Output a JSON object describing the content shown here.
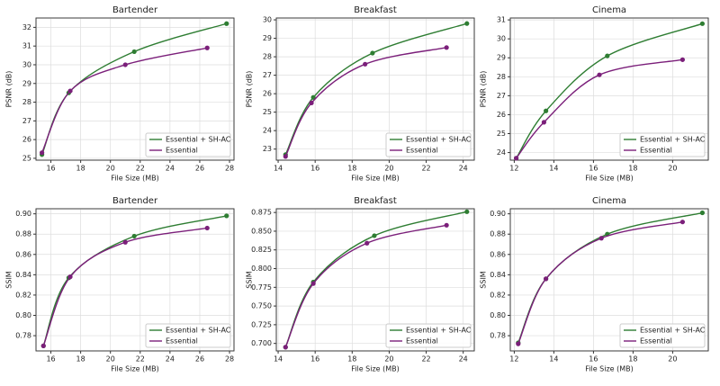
{
  "chart_data": [
    {
      "type": "line",
      "title": "Bartender",
      "x_label": "File Size (MB)",
      "y_label": "PSNR (dB)",
      "xlim": [
        15,
        28.3
      ],
      "xticks": [
        16,
        18,
        20,
        22,
        24,
        26,
        28
      ],
      "ylim": [
        24.9,
        32.5
      ],
      "yticks": [
        25,
        26,
        27,
        28,
        29,
        30,
        31,
        32
      ],
      "grid": true,
      "legend": "lower right",
      "series": [
        {
          "name": "Essential + SH-AC",
          "color": "#2e7d32",
          "x": [
            15.4,
            17.2,
            21.6,
            27.8
          ],
          "values": [
            25.2,
            28.5,
            30.7,
            32.2
          ]
        },
        {
          "name": "Essential",
          "color": "#7b1f7a",
          "x": [
            15.4,
            17.3,
            21.0,
            26.5
          ],
          "values": [
            25.3,
            28.6,
            30.0,
            30.9
          ]
        }
      ]
    },
    {
      "type": "line",
      "title": "Breakfast",
      "x_label": "File Size (MB)",
      "y_label": "PSNR (dB)",
      "xlim": [
        13.9,
        24.6
      ],
      "xticks": [
        14,
        16,
        18,
        20,
        22,
        24
      ],
      "ylim": [
        22.4,
        30.1
      ],
      "yticks": [
        23,
        24,
        25,
        26,
        27,
        28,
        29,
        30
      ],
      "grid": true,
      "legend": "lower right",
      "series": [
        {
          "name": "Essential + SH-AC",
          "color": "#2e7d32",
          "x": [
            14.4,
            15.9,
            19.1,
            24.2
          ],
          "values": [
            22.7,
            25.8,
            28.2,
            29.8
          ]
        },
        {
          "name": "Essential",
          "color": "#7b1f7a",
          "x": [
            14.4,
            15.8,
            18.7,
            23.1
          ],
          "values": [
            22.6,
            25.5,
            27.6,
            28.5
          ]
        }
      ]
    },
    {
      "type": "line",
      "title": "Cinema",
      "x_label": "File Size (MB)",
      "y_label": "PSNR (dB)",
      "xlim": [
        11.8,
        21.8
      ],
      "xticks": [
        12,
        14,
        16,
        18,
        20
      ],
      "ylim": [
        23.6,
        31.1
      ],
      "yticks": [
        24,
        25,
        26,
        27,
        28,
        29,
        30,
        31
      ],
      "grid": true,
      "legend": "lower right",
      "series": [
        {
          "name": "Essential + SH-AC",
          "color": "#2e7d32",
          "x": [
            12.1,
            13.6,
            16.7,
            21.5
          ],
          "values": [
            23.7,
            26.2,
            29.1,
            30.8
          ]
        },
        {
          "name": "Essential",
          "color": "#7b1f7a",
          "x": [
            12.1,
            13.5,
            16.3,
            20.5
          ],
          "values": [
            23.7,
            25.6,
            28.1,
            28.9
          ]
        }
      ]
    },
    {
      "type": "line",
      "title": "Bartender",
      "x_label": "File Size (MB)",
      "y_label": "SSIM",
      "xlim": [
        15,
        28.3
      ],
      "xticks": [
        16,
        18,
        20,
        22,
        24,
        26,
        28
      ],
      "ylim": [
        0.765,
        0.905
      ],
      "yticks": [
        0.78,
        {
          "value": 0.8,
          "label": "0.80"
        },
        0.82,
        0.84,
        0.86,
        0.88,
        {
          "value": 0.9,
          "label": "0.90"
        }
      ],
      "grid": true,
      "legend": "lower right",
      "series": [
        {
          "name": "Essential + SH-AC",
          "color": "#2e7d32",
          "x": [
            15.5,
            17.2,
            21.6,
            27.8
          ],
          "values": [
            0.77,
            0.837,
            0.878,
            0.898
          ]
        },
        {
          "name": "Essential",
          "color": "#7b1f7a",
          "x": [
            15.5,
            17.3,
            21.0,
            26.5
          ],
          "values": [
            0.77,
            0.838,
            0.872,
            0.886
          ]
        }
      ]
    },
    {
      "type": "line",
      "title": "Breakfast",
      "x_label": "File Size (MB)",
      "y_label": "SSIM",
      "xlim": [
        13.9,
        24.6
      ],
      "xticks": [
        14,
        16,
        18,
        20,
        22,
        24
      ],
      "ylim": [
        0.69,
        0.88
      ],
      "yticks": [
        {
          "value": 0.7,
          "label": "0.700"
        },
        {
          "value": 0.725,
          "label": "0.725"
        },
        {
          "value": 0.75,
          "label": "0.750"
        },
        {
          "value": 0.775,
          "label": "0.775"
        },
        {
          "value": 0.8,
          "label": "0.800"
        },
        {
          "value": 0.825,
          "label": "0.825"
        },
        {
          "value": 0.85,
          "label": "0.850"
        },
        {
          "value": 0.875,
          "label": "0.875"
        }
      ],
      "grid": true,
      "legend": "lower right",
      "series": [
        {
          "name": "Essential + SH-AC",
          "color": "#2e7d32",
          "x": [
            14.4,
            15.9,
            19.2,
            24.2
          ],
          "values": [
            0.695,
            0.782,
            0.844,
            0.876
          ]
        },
        {
          "name": "Essential",
          "color": "#7b1f7a",
          "x": [
            14.4,
            15.9,
            18.8,
            23.1
          ],
          "values": [
            0.695,
            0.78,
            0.834,
            0.858
          ]
        }
      ]
    },
    {
      "type": "line",
      "title": "Cinema",
      "x_label": "File Size (MB)",
      "y_label": "SSIM",
      "xlim": [
        11.8,
        21.8
      ],
      "xticks": [
        12,
        14,
        16,
        18,
        20
      ],
      "ylim": [
        0.765,
        0.905
      ],
      "yticks": [
        0.78,
        {
          "value": 0.8,
          "label": "0.80"
        },
        0.82,
        0.84,
        0.86,
        0.88,
        {
          "value": 0.9,
          "label": "0.90"
        }
      ],
      "grid": true,
      "legend": "lower right",
      "series": [
        {
          "name": "Essential + SH-AC",
          "color": "#2e7d32",
          "x": [
            12.2,
            13.6,
            16.7,
            21.5
          ],
          "values": [
            0.773,
            0.836,
            0.88,
            0.901
          ]
        },
        {
          "name": "Essential",
          "color": "#7b1f7a",
          "x": [
            12.2,
            13.6,
            16.4,
            20.5
          ],
          "values": [
            0.772,
            0.836,
            0.876,
            0.892
          ]
        }
      ]
    }
  ]
}
